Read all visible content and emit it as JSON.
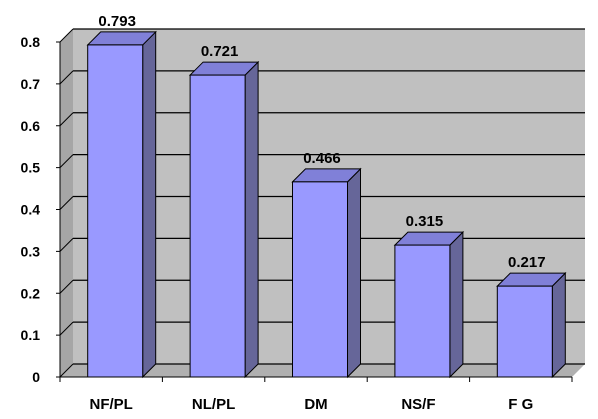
{
  "chart_data": {
    "type": "bar",
    "title": "",
    "xlabel": "",
    "ylabel": "",
    "categories": [
      "NF/PL",
      "NL/PL",
      "DM",
      "NS/F",
      "F G"
    ],
    "values": [
      0.793,
      0.721,
      0.466,
      0.315,
      0.217
    ],
    "data_labels": [
      "0.793",
      "0.721",
      "0.466",
      "0.315",
      "0.217"
    ],
    "ylim": [
      0,
      0.8
    ],
    "yticks": [
      0,
      0.1,
      0.2,
      0.3,
      0.4,
      0.5,
      0.6,
      0.7,
      0.8
    ],
    "ytick_labels": [
      "0",
      "0.1",
      "0.2",
      "0.3",
      "0.4",
      "0.5",
      "0.6",
      "0.7",
      "0.8"
    ],
    "grid": true,
    "legend": "none",
    "style": "3d-column",
    "colors": {
      "bar_front": "#9999ff",
      "bar_side": "#666699",
      "bar_top": "#8080d8",
      "bar_edge": "#000000",
      "wall": "#c0c0c0",
      "gridline": "#000000"
    }
  }
}
